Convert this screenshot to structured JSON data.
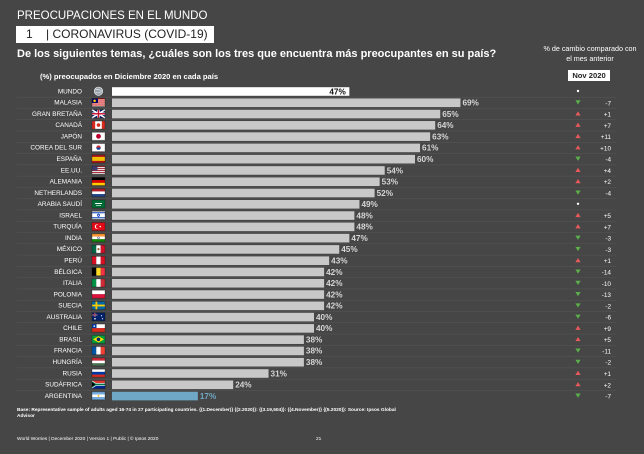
{
  "header": {
    "title": "PREOCUPACIONES EN EL MUNDO",
    "topic_number": "1",
    "topic_label": "| CORONAVIRUS (COVID-19)"
  },
  "question": "De los siguientes temas, ¿cuáles son los tres que encuentra más preocupantes en su país?",
  "change_header": "% de cambio comparado con el mes anterior",
  "subtitle": "(%) preocupados en Diciembre  2020 en cada país",
  "month_label": "Nov 2020",
  "footnote": "Base: Representative sample of adults aged 16-74 in 27 participating countries. {(1.December)} {(2.2020)}: {(3.19,504)}: {(4.November)} {(5.2020)}: Source: Ipsos Global Advisor",
  "footer": {
    "left": "World Worries | December 2020 | Version 1 | Public | © Ipsos 2020",
    "page": "21"
  },
  "colors": {
    "bar": "#c8c8c8",
    "world_bar": "#ffffff",
    "highlight_bar": "#6fa8c6",
    "up": "#e85a5a",
    "down": "#5bb04a",
    "background": "#464646"
  },
  "chart_data": {
    "type": "bar",
    "orientation": "horizontal",
    "xlim": [
      0,
      100
    ],
    "categories": [
      "MUNDO",
      "MALASIA",
      "GRAN BRETAÑA",
      "CANADÁ",
      "JAPÓN",
      "COREA DEL SUR",
      "ESPAÑA",
      "EE.UU.",
      "ALEMANIA",
      "NETHERLANDS",
      "ARABIA SAUDÍ",
      "ISRAEL",
      "TURQUÍA",
      "INDIA",
      "MÉXICO",
      "PERÚ",
      "BÉLGICA",
      "ITALIA",
      "POLONIA",
      "SUECIA",
      "AUSTRALIA",
      "CHILE",
      "BRASIL",
      "FRANCIA",
      "HUNGRÍA",
      "RUSIA",
      "SUDÁFRICA",
      "ARGENTINA"
    ],
    "values": [
      47,
      69,
      65,
      64,
      63,
      61,
      60,
      54,
      53,
      52,
      49,
      48,
      48,
      47,
      45,
      43,
      42,
      42,
      42,
      42,
      40,
      40,
      38,
      38,
      38,
      31,
      24,
      17
    ],
    "value_labels": [
      "47%",
      "69%",
      "65%",
      "64%",
      "63%",
      "61%",
      "60%",
      "54%",
      "53%",
      "52%",
      "49%",
      "48%",
      "48%",
      "47%",
      "45%",
      "43%",
      "42%",
      "42%",
      "42%",
      "42%",
      "40%",
      "40%",
      "38%",
      "38%",
      "38%",
      "31%",
      "24%",
      "17%"
    ],
    "change_labels": [
      "",
      "-7",
      "+1",
      "+7",
      "+11",
      "+10",
      "-4",
      "+4",
      "+2",
      "-4",
      "",
      "+5",
      "+7",
      "-3",
      "-3",
      "+1",
      "-14",
      "-10",
      "-13",
      "-2",
      "-6",
      "+9",
      "+5",
      "-11",
      "-2",
      "+1",
      "+2",
      "-7"
    ],
    "change_direction": [
      "neutral",
      "down",
      "up",
      "up",
      "up",
      "up",
      "down",
      "up",
      "up",
      "down",
      "neutral",
      "up",
      "up",
      "down",
      "down",
      "up",
      "down",
      "down",
      "down",
      "down",
      "down",
      "up",
      "up",
      "down",
      "down",
      "up",
      "up",
      "down"
    ],
    "flags": [
      "globe-icon",
      "flag-malaysia-icon",
      "flag-uk-icon",
      "flag-canada-icon",
      "flag-japan-icon",
      "flag-south-korea-icon",
      "flag-spain-icon",
      "flag-usa-icon",
      "flag-germany-icon",
      "flag-netherlands-icon",
      "flag-saudi-arabia-icon",
      "flag-israel-icon",
      "flag-turkey-icon",
      "flag-india-icon",
      "flag-mexico-icon",
      "flag-peru-icon",
      "flag-belgium-icon",
      "flag-italy-icon",
      "flag-poland-icon",
      "flag-sweden-icon",
      "flag-australia-icon",
      "flag-chile-icon",
      "flag-brazil-icon",
      "flag-france-icon",
      "flag-hungary-icon",
      "flag-russia-icon",
      "flag-south-africa-icon",
      "flag-argentina-icon"
    ]
  }
}
